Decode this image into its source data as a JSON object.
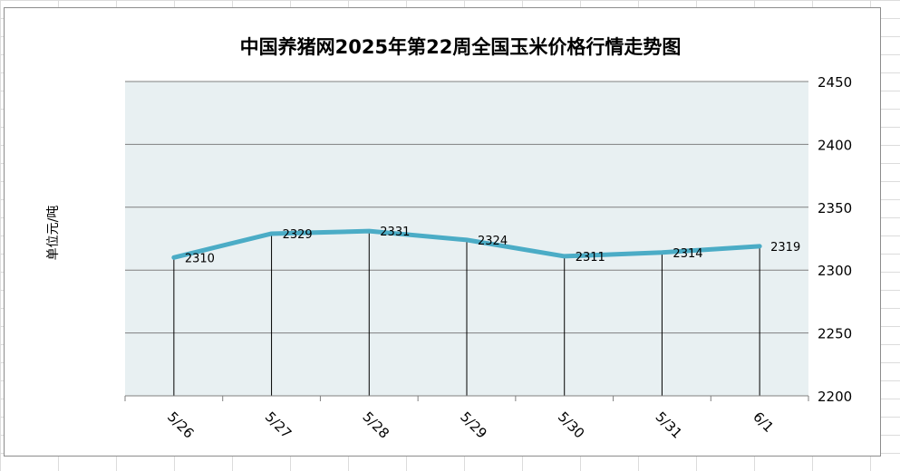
{
  "chart_data": {
    "type": "line",
    "title": "中国养猪网2025年第22周全国玉米价格行情走势图",
    "ylabel": "单位元/吨",
    "xlabel": "",
    "categories": [
      "5/26",
      "5/27",
      "5/28",
      "5/29",
      "5/30",
      "5/31",
      "6/1"
    ],
    "series": [
      {
        "values": [
          2310,
          2329,
          2331,
          2324,
          2311,
          2314,
          2319
        ]
      }
    ],
    "data_labels": [
      "2310",
      "2329",
      "2331",
      "2324",
      "2311",
      "2314",
      "2319"
    ],
    "ylim": [
      2200,
      2450
    ],
    "yticks": [
      2200,
      2250,
      2300,
      2350,
      2400,
      2450
    ],
    "ytick_labels": [
      "2200",
      "2250",
      "2300",
      "2350",
      "2400",
      "2450"
    ],
    "y_axis_side": "right",
    "grid": true,
    "drop_lines": true,
    "colors": {
      "line": "#4bacc6",
      "plot_bg": "#e8f0f2",
      "grid": "#7f7f7f"
    }
  }
}
